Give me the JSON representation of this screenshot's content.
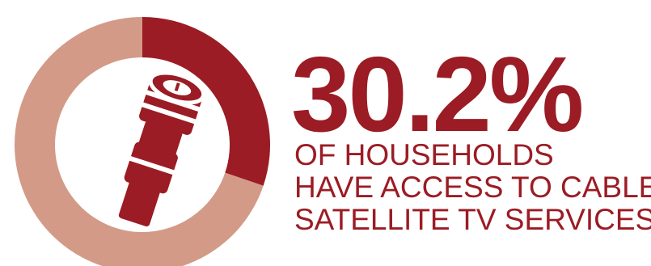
{
  "colors": {
    "primary": "#9b1c24",
    "remainder": "#d39a88",
    "background": "#ffffff"
  },
  "chart_data": {
    "type": "pie",
    "style": "donut",
    "slices": [
      {
        "value": 30.2
      },
      {
        "value": 69.8
      }
    ],
    "headline": "30.2%",
    "caption_lines": [
      "OF HOUSEHOLDS",
      "HAVE ACCESS TO CABLE",
      "SATELLITE TV SERVICES"
    ],
    "icon": "cable-connector-icon"
  }
}
